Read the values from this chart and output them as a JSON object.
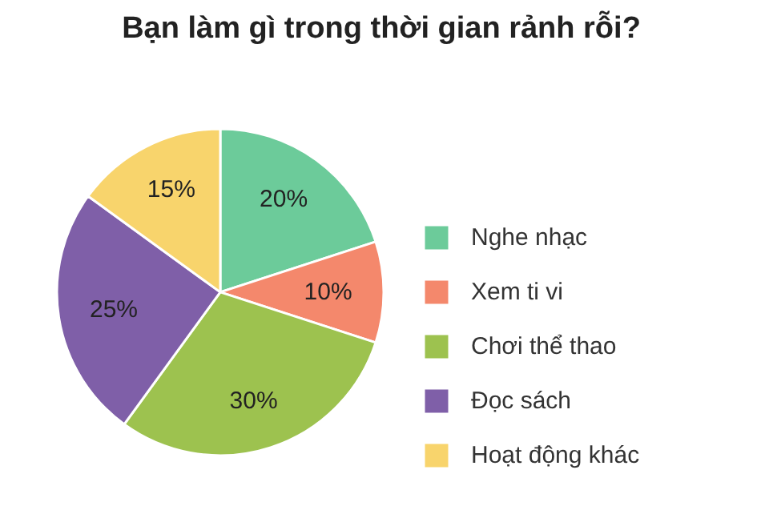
{
  "chart_data": {
    "type": "pie",
    "title": "Bạn làm gì trong thời gian rảnh rỗi?",
    "categories": [
      "Nghe nhạc",
      "Xem ti vi",
      "Chơi thể thao",
      "Đọc sách",
      "Hoạt động khác"
    ],
    "values": [
      20,
      10,
      30,
      25,
      15
    ],
    "value_labels": [
      "20%",
      "10%",
      "30%",
      "25%",
      "15%"
    ],
    "colors": [
      "#6ccb9a",
      "#f4886c",
      "#9dc24f",
      "#7f5fa8",
      "#f8d46c"
    ],
    "legend": "right"
  }
}
